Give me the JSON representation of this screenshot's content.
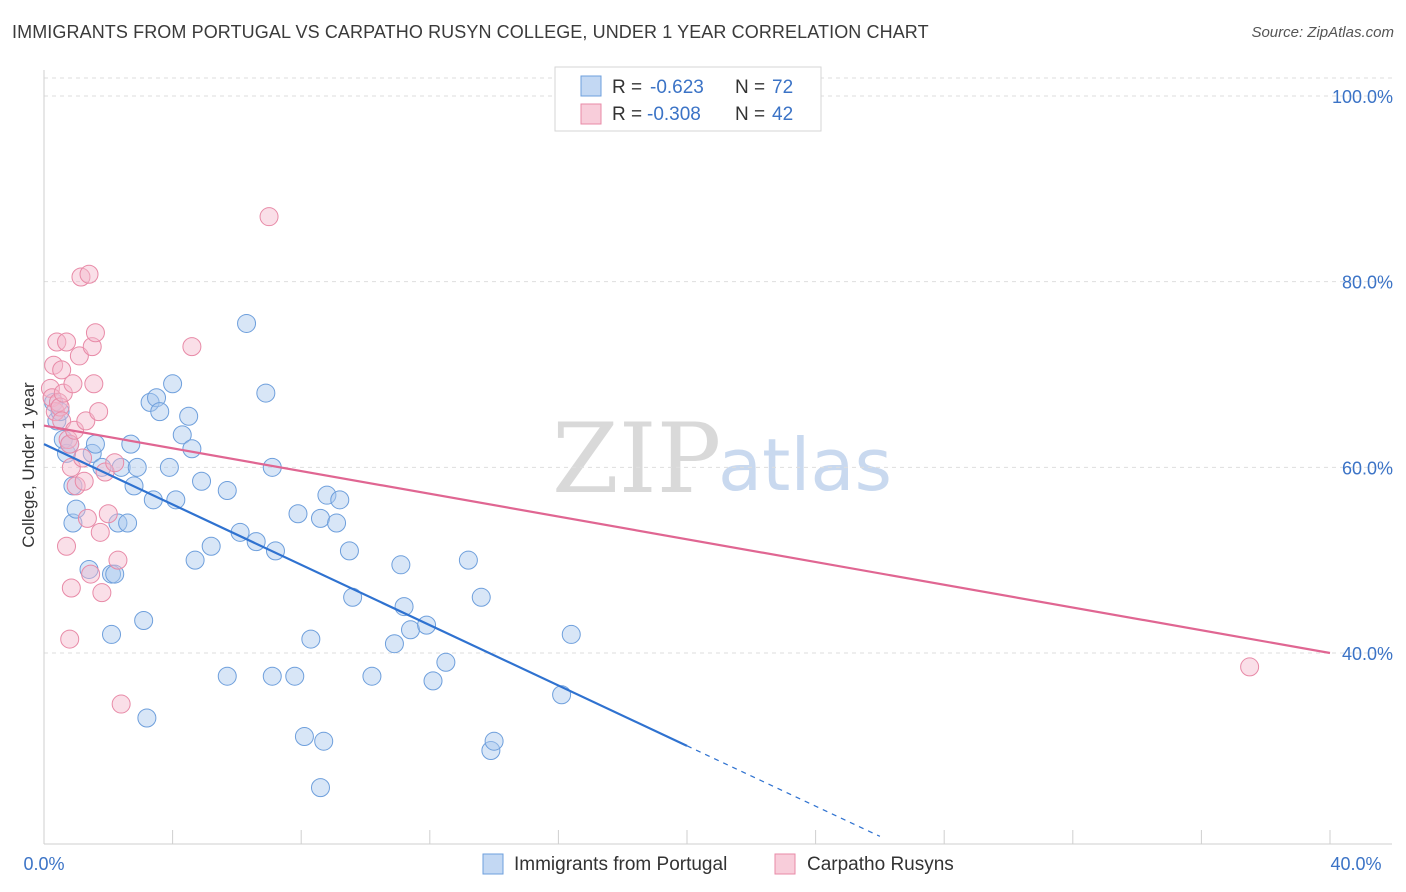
{
  "header": {
    "title": "IMMIGRANTS FROM PORTUGAL VS CARPATHO RUSYN COLLEGE, UNDER 1 YEAR CORRELATION CHART",
    "source": "Source: ZipAtlas.com"
  },
  "watermark": {
    "zip": "ZIP",
    "atlas": "atlas"
  },
  "legend": {
    "rows": [
      {
        "r_label": "R =",
        "r_value": "-0.623",
        "n_label": "N =",
        "n_value": "72",
        "color": "#a9c8ee"
      },
      {
        "r_label": "R =",
        "r_value": "-0.308",
        "n_label": "N =",
        "n_value": "42",
        "color": "#f5b8cb"
      }
    ]
  },
  "bottom_legend": [
    {
      "label": "Immigrants from Portugal",
      "color": "#a9c8ee"
    },
    {
      "label": "Carpatho Rusyns",
      "color": "#f5b8cb"
    }
  ],
  "chart_data": {
    "type": "scatter",
    "title": "IMMIGRANTS FROM PORTUGAL VS CARPATHO RUSYN COLLEGE, UNDER 1 YEAR CORRELATION CHART",
    "xlabel": "",
    "ylabel": "College, Under 1 year",
    "xlim": [
      0,
      40
    ],
    "ylim": [
      20,
      104
    ],
    "x_tick_labels": [
      "0.0%",
      "40.0%"
    ],
    "y_ticks": [
      40,
      60,
      80,
      100
    ],
    "y_tick_labels": [
      "40.0%",
      "60.0%",
      "80.0%",
      "100.0%"
    ],
    "series": [
      {
        "name": "Immigrants from Portugal",
        "color": "#a9c8ee",
        "stroke": "#6e9fdc",
        "line_color": "#2f72d0",
        "trend": {
          "x0": 0.0,
          "y0": 62.5,
          "x1": 20.0,
          "y1": 30.0,
          "dash_to_x": 26.0
        },
        "points": [
          [
            0.3,
            67
          ],
          [
            0.4,
            65
          ],
          [
            0.5,
            66
          ],
          [
            0.6,
            63
          ],
          [
            0.7,
            61.5
          ],
          [
            0.8,
            62.5
          ],
          [
            0.9,
            58
          ],
          [
            0.9,
            54
          ],
          [
            1.0,
            55.5
          ],
          [
            1.4,
            49
          ],
          [
            1.5,
            61.5
          ],
          [
            1.6,
            62.5
          ],
          [
            1.8,
            60
          ],
          [
            2.1,
            48.5
          ],
          [
            2.2,
            48.5
          ],
          [
            2.3,
            54
          ],
          [
            2.4,
            60
          ],
          [
            2.6,
            54
          ],
          [
            2.7,
            62.5
          ],
          [
            2.8,
            58
          ],
          [
            2.9,
            60
          ],
          [
            2.1,
            42
          ],
          [
            3.1,
            43.5
          ],
          [
            3.3,
            67
          ],
          [
            3.4,
            56.5
          ],
          [
            3.5,
            67.5
          ],
          [
            3.6,
            66
          ],
          [
            3.9,
            60
          ],
          [
            4.0,
            69
          ],
          [
            4.1,
            56.5
          ],
          [
            4.3,
            63.5
          ],
          [
            4.5,
            65.5
          ],
          [
            4.6,
            62
          ],
          [
            4.7,
            50
          ],
          [
            4.9,
            58.5
          ],
          [
            5.2,
            51.5
          ],
          [
            5.7,
            57.5
          ],
          [
            6.1,
            53
          ],
          [
            6.3,
            75.5
          ],
          [
            6.6,
            52
          ],
          [
            6.9,
            68
          ],
          [
            7.1,
            60
          ],
          [
            7.2,
            51
          ],
          [
            7.1,
            37.5
          ],
          [
            7.8,
            37.5
          ],
          [
            7.9,
            55
          ],
          [
            8.3,
            41.5
          ],
          [
            8.6,
            54.5
          ],
          [
            8.8,
            57
          ],
          [
            8.7,
            30.5
          ],
          [
            9.1,
            54
          ],
          [
            9.2,
            56.5
          ],
          [
            9.5,
            51
          ],
          [
            9.6,
            46
          ],
          [
            10.2,
            37.5
          ],
          [
            10.9,
            41
          ],
          [
            11.1,
            49.5
          ],
          [
            11.2,
            45
          ],
          [
            11.4,
            42.5
          ],
          [
            11.9,
            43
          ],
          [
            12.1,
            37
          ],
          [
            12.5,
            39
          ],
          [
            13.2,
            50
          ],
          [
            13.6,
            46
          ],
          [
            13.9,
            29.5
          ],
          [
            14.0,
            30.5
          ],
          [
            16.4,
            42
          ],
          [
            16.1,
            35.5
          ],
          [
            3.2,
            33
          ],
          [
            5.7,
            37.5
          ],
          [
            8.1,
            31
          ],
          [
            8.6,
            25.5
          ]
        ]
      },
      {
        "name": "Carpatho Rusyns",
        "color": "#f5b8cb",
        "stroke": "#e88aa7",
        "line_color": "#e06692",
        "trend": {
          "x0": 0.0,
          "y0": 64.5,
          "x1": 40.0,
          "y1": 40.0
        },
        "points": [
          [
            0.2,
            68.5
          ],
          [
            0.25,
            67.5
          ],
          [
            0.3,
            71
          ],
          [
            0.35,
            66
          ],
          [
            0.4,
            73.5
          ],
          [
            0.45,
            67
          ],
          [
            0.5,
            66.5
          ],
          [
            0.55,
            65
          ],
          [
            0.6,
            68
          ],
          [
            0.7,
            73.5
          ],
          [
            0.75,
            63
          ],
          [
            0.8,
            62.5
          ],
          [
            0.85,
            60
          ],
          [
            0.9,
            69
          ],
          [
            0.95,
            64
          ],
          [
            1.0,
            58
          ],
          [
            1.1,
            72
          ],
          [
            1.15,
            80.5
          ],
          [
            1.2,
            61
          ],
          [
            1.25,
            58.5
          ],
          [
            1.3,
            65
          ],
          [
            1.35,
            54.5
          ],
          [
            1.4,
            80.8
          ],
          [
            1.45,
            48.5
          ],
          [
            1.5,
            73
          ],
          [
            1.55,
            69
          ],
          [
            1.6,
            74.5
          ],
          [
            1.7,
            66
          ],
          [
            1.75,
            53
          ],
          [
            1.8,
            46.5
          ],
          [
            1.9,
            59.5
          ],
          [
            2.0,
            55
          ],
          [
            2.2,
            60.5
          ],
          [
            2.3,
            50
          ],
          [
            0.7,
            51.5
          ],
          [
            0.8,
            41.5
          ],
          [
            0.85,
            47
          ],
          [
            2.4,
            34.5
          ],
          [
            4.6,
            73
          ],
          [
            7.0,
            87
          ],
          [
            37.5,
            38.5
          ],
          [
            0.55,
            70.5
          ]
        ]
      }
    ]
  }
}
